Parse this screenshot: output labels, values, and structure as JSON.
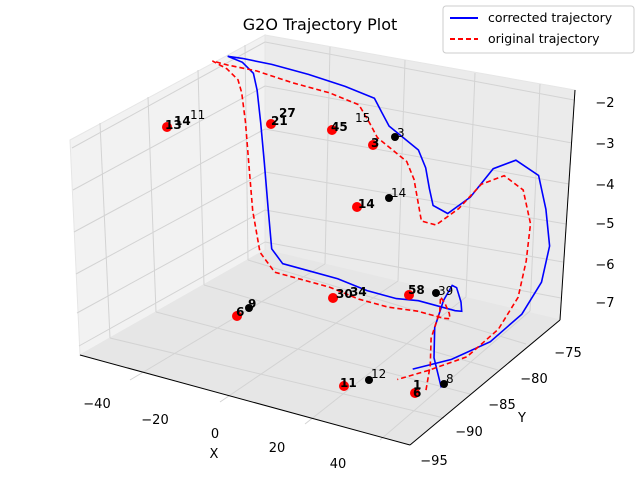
{
  "chart_data": {
    "type": "line",
    "projection": "3d",
    "title": "G2O Trajectory Plot",
    "xlabel": "X",
    "ylabel": "Y",
    "zlabel": "",
    "xlim": [
      -45,
      45
    ],
    "ylim": [
      -97,
      -74
    ],
    "zlim": [
      -7.6,
      -1.8
    ],
    "xticks": [
      "−40",
      "−20",
      "0",
      "20",
      "40"
    ],
    "yticks": [
      "−95",
      "−90",
      "−85",
      "−80",
      "−75"
    ],
    "zticks": [
      "−7",
      "−6",
      "−5",
      "−4",
      "−3",
      "−2"
    ],
    "grid": true,
    "legend_position": "top-right",
    "colors": {
      "corrected": "#0000ff",
      "original": "#ff0000",
      "markers_black": "#000000",
      "pane": "#f2f2f2",
      "grid": "#d3d3d3"
    },
    "series": [
      {
        "name": "corrected trajectory",
        "color": "#0000ff",
        "style": "solid",
        "points": [
          [
            36,
            -89,
            -7.3
          ],
          [
            34,
            -89,
            -6.6
          ],
          [
            32,
            -88,
            -6.0
          ],
          [
            30,
            -86,
            -5.6
          ],
          [
            28,
            -84,
            -5.5
          ],
          [
            27,
            -83,
            -5.7
          ],
          [
            26,
            -82,
            -6.2
          ],
          [
            24,
            -81,
            -6.6
          ],
          [
            20,
            -80,
            -6.8
          ],
          [
            10,
            -80,
            -6.8
          ],
          [
            4,
            -80,
            -6.9
          ],
          [
            -4,
            -80,
            -6.9
          ],
          [
            -12,
            -80,
            -6.8
          ],
          [
            -20,
            -80,
            -6.8
          ],
          [
            -27,
            -80,
            -6.8
          ],
          [
            -30,
            -80,
            -6.5
          ],
          [
            -31,
            -80,
            -5.5
          ],
          [
            -32,
            -80,
            -4.4
          ],
          [
            -33,
            -80,
            -3.4
          ],
          [
            -34,
            -80,
            -2.6
          ],
          [
            -35,
            -80,
            -2.2
          ],
          [
            -38,
            -80,
            -2.0
          ],
          [
            -42,
            -80,
            -1.95
          ],
          [
            -38,
            -80,
            -1.9
          ],
          [
            -30,
            -80,
            -1.85
          ],
          [
            -20,
            -80,
            -1.85
          ],
          [
            -10,
            -80,
            -1.9
          ],
          [
            -2,
            -80,
            -2.0
          ],
          [
            0,
            -80,
            -2.3
          ],
          [
            2,
            -80,
            -2.6
          ],
          [
            6,
            -80,
            -2.8
          ],
          [
            10,
            -80,
            -3.0
          ],
          [
            12,
            -80,
            -3.4
          ],
          [
            13,
            -80,
            -3.9
          ],
          [
            14,
            -80,
            -4.3
          ],
          [
            18,
            -80,
            -4.4
          ],
          [
            22,
            -79,
            -4.0
          ],
          [
            26,
            -78,
            -3.3
          ],
          [
            30,
            -77,
            -3.1
          ],
          [
            34,
            -76,
            -3.5
          ],
          [
            36,
            -76,
            -4.3
          ],
          [
            37,
            -76,
            -5.2
          ],
          [
            37,
            -77,
            -6.0
          ],
          [
            36,
            -79,
            -6.6
          ],
          [
            34,
            -82,
            -7.0
          ],
          [
            30,
            -85,
            -7.2
          ],
          [
            26,
            -88,
            -7.2
          ]
        ]
      },
      {
        "name": "original trajectory",
        "color": "#ff0000",
        "style": "dashed",
        "points": [
          [
            34,
            -90,
            -7.3
          ],
          [
            33,
            -89,
            -6.8
          ],
          [
            31,
            -88,
            -6.3
          ],
          [
            29,
            -86,
            -5.9
          ],
          [
            27,
            -85,
            -5.7
          ],
          [
            26,
            -84,
            -6.0
          ],
          [
            25,
            -83,
            -6.4
          ],
          [
            23,
            -82,
            -6.7
          ],
          [
            19,
            -81,
            -6.9
          ],
          [
            12,
            -81,
            -6.9
          ],
          [
            4,
            -81,
            -7.0
          ],
          [
            -4,
            -81,
            -7.0
          ],
          [
            -12,
            -81,
            -6.9
          ],
          [
            -20,
            -81,
            -6.9
          ],
          [
            -27,
            -81,
            -6.9
          ],
          [
            -31,
            -81,
            -6.5
          ],
          [
            -33,
            -81,
            -5.5
          ],
          [
            -34,
            -81,
            -4.4
          ],
          [
            -35,
            -81,
            -3.3
          ],
          [
            -36,
            -81,
            -2.6
          ],
          [
            -37,
            -81,
            -2.3
          ],
          [
            -40,
            -81,
            -2.1
          ],
          [
            -44,
            -81,
            -2.0
          ],
          [
            -40,
            -81,
            -2.0
          ],
          [
            -32,
            -81,
            -1.95
          ],
          [
            -22,
            -81,
            -2.0
          ],
          [
            -12,
            -81,
            -2.0
          ],
          [
            -4,
            -81,
            -2.1
          ],
          [
            -1,
            -81,
            -2.5
          ],
          [
            1,
            -81,
            -2.8
          ],
          [
            5,
            -81,
            -3.0
          ],
          [
            9,
            -81,
            -3.2
          ],
          [
            11,
            -81,
            -3.6
          ],
          [
            12,
            -81,
            -4.1
          ],
          [
            13,
            -81,
            -4.6
          ],
          [
            17,
            -81,
            -4.6
          ],
          [
            21,
            -80,
            -4.2
          ],
          [
            25,
            -79,
            -3.6
          ],
          [
            29,
            -78,
            -3.4
          ],
          [
            32,
            -77,
            -3.8
          ],
          [
            34,
            -77,
            -4.6
          ],
          [
            35,
            -78,
            -5.4
          ],
          [
            35,
            -79,
            -6.2
          ],
          [
            34,
            -81,
            -6.8
          ],
          [
            32,
            -84,
            -7.2
          ],
          [
            28,
            -87,
            -7.3
          ],
          [
            24,
            -89,
            -7.4
          ]
        ]
      }
    ],
    "point_labels": [
      {
        "text": "8",
        "color": "black"
      },
      {
        "text": "12",
        "color": "black"
      },
      {
        "text": "11",
        "color": "black"
      },
      {
        "text": "1",
        "color": "red"
      },
      {
        "text": "6",
        "color": "red"
      },
      {
        "text": "39",
        "color": "black"
      },
      {
        "text": "58",
        "color": "black"
      },
      {
        "text": "34",
        "color": "black"
      },
      {
        "text": "30",
        "color": "black"
      },
      {
        "text": "9",
        "color": "black"
      },
      {
        "text": "6",
        "color": "black"
      },
      {
        "text": "14",
        "color": "black"
      },
      {
        "text": "14",
        "color": "red"
      },
      {
        "text": "3",
        "color": "black"
      },
      {
        "text": "3",
        "color": "red"
      },
      {
        "text": "15",
        "color": "black"
      },
      {
        "text": "45",
        "color": "red"
      },
      {
        "text": "27",
        "color": "black"
      },
      {
        "text": "21",
        "color": "black"
      },
      {
        "text": "11",
        "color": "black"
      },
      {
        "text": "14",
        "color": "black"
      },
      {
        "text": "13",
        "color": "red"
      }
    ]
  }
}
